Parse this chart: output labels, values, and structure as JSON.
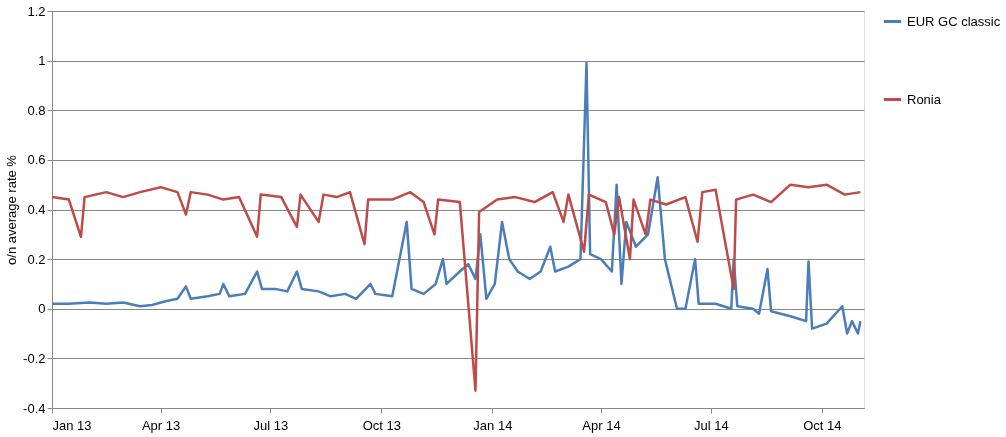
{
  "chart_data": {
    "type": "line",
    "ylabel": "o/n average rate %",
    "xlim": [
      "2013-01-01",
      "2014-11-05"
    ],
    "xticks": [
      {
        "value": "2013-01-01",
        "label": "Jan 13"
      },
      {
        "value": "2013-04-01",
        "label": "Apr 13"
      },
      {
        "value": "2013-07-01",
        "label": "Jul 13"
      },
      {
        "value": "2013-10-01",
        "label": "Oct 13"
      },
      {
        "value": "2014-01-01",
        "label": "Jan 14"
      },
      {
        "value": "2014-04-01",
        "label": "Apr 14"
      },
      {
        "value": "2014-07-01",
        "label": "Jul 14"
      },
      {
        "value": "2014-10-01",
        "label": "Oct 14"
      }
    ],
    "ylim": [
      -0.4,
      1.2
    ],
    "yticks": [
      -0.4,
      -0.2,
      0,
      0.2,
      0.4,
      0.6,
      0.8,
      1,
      1.2
    ],
    "grid": "y",
    "legend": "right",
    "marker": "none",
    "line_style": "solid",
    "series": [
      {
        "name": "EUR GC classic",
        "color": "#4a7ebb",
        "x": [
          "2013-01-01",
          "2013-01-15",
          "2013-02-01",
          "2013-02-15",
          "2013-03-01",
          "2013-03-15",
          "2013-03-25",
          "2013-04-05",
          "2013-04-15",
          "2013-04-22",
          "2013-04-26",
          "2013-05-10",
          "2013-05-20",
          "2013-05-23",
          "2013-05-28",
          "2013-06-10",
          "2013-06-20",
          "2013-06-24",
          "2013-07-05",
          "2013-07-15",
          "2013-07-23",
          "2013-07-27",
          "2013-08-10",
          "2013-08-20",
          "2013-09-01",
          "2013-09-10",
          "2013-09-22",
          "2013-09-26",
          "2013-10-10",
          "2013-10-22",
          "2013-10-26",
          "2013-11-05",
          "2013-11-15",
          "2013-11-21",
          "2013-11-24",
          "2013-12-05",
          "2013-12-12",
          "2013-12-18",
          "2013-12-22",
          "2013-12-27",
          "2014-01-03",
          "2014-01-09",
          "2014-01-15",
          "2014-01-22",
          "2014-02-01",
          "2014-02-10",
          "2014-02-18",
          "2014-02-22",
          "2014-03-05",
          "2014-03-15",
          "2014-03-20",
          "2014-03-23",
          "2014-04-01",
          "2014-04-10",
          "2014-04-14",
          "2014-04-18",
          "2014-04-22",
          "2014-04-30",
          "2014-05-10",
          "2014-05-18",
          "2014-05-24",
          "2014-06-03",
          "2014-06-10",
          "2014-06-18",
          "2014-06-21",
          "2014-07-05",
          "2014-07-18",
          "2014-07-20",
          "2014-07-23",
          "2014-08-05",
          "2014-08-10",
          "2014-08-17",
          "2014-08-20",
          "2014-09-05",
          "2014-09-18",
          "2014-09-20",
          "2014-09-23",
          "2014-10-05",
          "2014-10-18",
          "2014-10-22",
          "2014-10-26",
          "2014-10-31",
          "2014-11-02"
        ],
        "values": [
          0.02,
          0.02,
          0.025,
          0.02,
          0.025,
          0.01,
          0.015,
          0.03,
          0.04,
          0.09,
          0.04,
          0.05,
          0.06,
          0.1,
          0.05,
          0.06,
          0.15,
          0.08,
          0.08,
          0.07,
          0.15,
          0.08,
          0.07,
          0.05,
          0.06,
          0.04,
          0.1,
          0.06,
          0.05,
          0.35,
          0.08,
          0.06,
          0.1,
          0.2,
          0.1,
          0.15,
          0.18,
          0.12,
          0.3,
          0.04,
          0.1,
          0.35,
          0.2,
          0.15,
          0.12,
          0.15,
          0.25,
          0.15,
          0.17,
          0.2,
          0.99,
          0.22,
          0.2,
          0.15,
          0.5,
          0.1,
          0.35,
          0.25,
          0.3,
          0.53,
          0.2,
          0.0,
          0.0,
          0.2,
          0.02,
          0.02,
          0.0,
          0.2,
          0.01,
          0.0,
          -0.02,
          0.16,
          -0.01,
          -0.03,
          -0.05,
          0.19,
          -0.08,
          -0.06,
          0.01,
          -0.1,
          -0.05,
          -0.1,
          -0.05
        ]
      },
      {
        "name": "Ronia",
        "color": "#be4b48",
        "x": [
          "2013-01-01",
          "2013-01-15",
          "2013-01-25",
          "2013-01-28",
          "2013-02-15",
          "2013-03-01",
          "2013-03-15",
          "2013-04-01",
          "2013-04-15",
          "2013-04-22",
          "2013-04-26",
          "2013-05-10",
          "2013-05-23",
          "2013-06-05",
          "2013-06-20",
          "2013-06-23",
          "2013-07-10",
          "2013-07-23",
          "2013-07-26",
          "2013-08-10",
          "2013-08-14",
          "2013-08-25",
          "2013-09-05",
          "2013-09-17",
          "2013-09-20",
          "2013-10-10",
          "2013-10-25",
          "2013-11-05",
          "2013-11-14",
          "2013-11-17",
          "2013-12-05",
          "2013-12-18",
          "2013-12-21",
          "2014-01-05",
          "2014-01-20",
          "2014-02-05",
          "2014-02-20",
          "2014-03-01",
          "2014-03-05",
          "2014-03-18",
          "2014-03-22",
          "2014-04-05",
          "2014-04-12",
          "2014-04-16",
          "2014-04-25",
          "2014-04-28",
          "2014-05-08",
          "2014-05-12",
          "2014-05-25",
          "2014-06-10",
          "2014-06-20",
          "2014-06-24",
          "2014-07-05",
          "2014-07-20",
          "2014-07-22",
          "2014-08-05",
          "2014-08-20",
          "2014-09-05",
          "2014-09-20",
          "2014-10-05",
          "2014-10-20",
          "2014-11-02"
        ],
        "values": [
          0.45,
          0.44,
          0.29,
          0.45,
          0.47,
          0.45,
          0.47,
          0.49,
          0.47,
          0.38,
          0.47,
          0.46,
          0.44,
          0.45,
          0.29,
          0.46,
          0.45,
          0.33,
          0.46,
          0.35,
          0.46,
          0.45,
          0.47,
          0.26,
          0.44,
          0.44,
          0.47,
          0.43,
          0.3,
          0.44,
          0.43,
          -0.33,
          0.39,
          0.44,
          0.45,
          0.43,
          0.47,
          0.35,
          0.46,
          0.23,
          0.46,
          0.43,
          0.3,
          0.45,
          0.2,
          0.44,
          0.3,
          0.44,
          0.42,
          0.45,
          0.27,
          0.47,
          0.48,
          0.08,
          0.44,
          0.46,
          0.43,
          0.5,
          0.49,
          0.5,
          0.46,
          0.47
        ]
      }
    ]
  }
}
